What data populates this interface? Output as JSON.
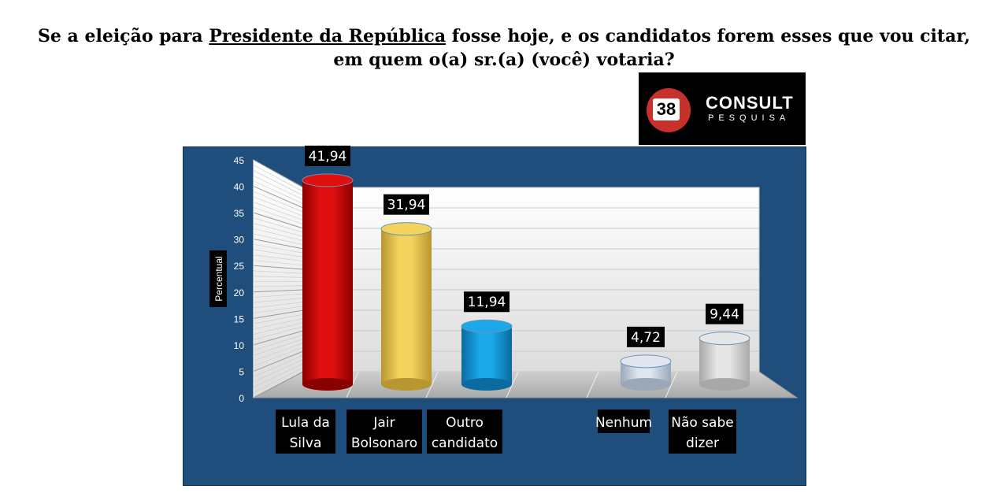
{
  "title": {
    "part1": "Se a eleição para ",
    "underlined": "Presidente da República",
    "part2": " fosse hoje, e os candidatos forem esses que vou citar,",
    "line2": "em quem o(a) sr.(a) (você) votaria?"
  },
  "logo": {
    "number": "38",
    "brand": "CONSULT",
    "sub": "PESQUISA"
  },
  "chart_data": {
    "type": "bar",
    "title": "Se a eleição para Presidente da República fosse hoje, e os candidatos forem esses que vou citar, em quem o(a) sr.(a) (você) votaria?",
    "ylabel": "Percentual",
    "xlabel": "",
    "ylim": [
      0,
      45
    ],
    "yticks": [
      "0",
      "5",
      "10",
      "15",
      "20",
      "25",
      "30",
      "35",
      "40",
      "45"
    ],
    "categories": [
      [
        "Lula da",
        "Silva"
      ],
      [
        "Jair",
        "Bolsonaro"
      ],
      [
        "Outro",
        "candidato"
      ],
      [],
      [
        "Nenhum"
      ],
      [
        "Não sabe",
        "dizer"
      ]
    ],
    "values": [
      41.94,
      31.94,
      11.94,
      null,
      4.72,
      9.44
    ],
    "labels": [
      "41,94",
      "31,94",
      "11,94",
      "",
      "4,72",
      "9,44"
    ],
    "colors": [
      "#e01010",
      "#f2d45c",
      "#1aa8e8",
      "",
      "#dfe6ef",
      "#e6e6e6"
    ],
    "grid": true,
    "legend": "none"
  }
}
